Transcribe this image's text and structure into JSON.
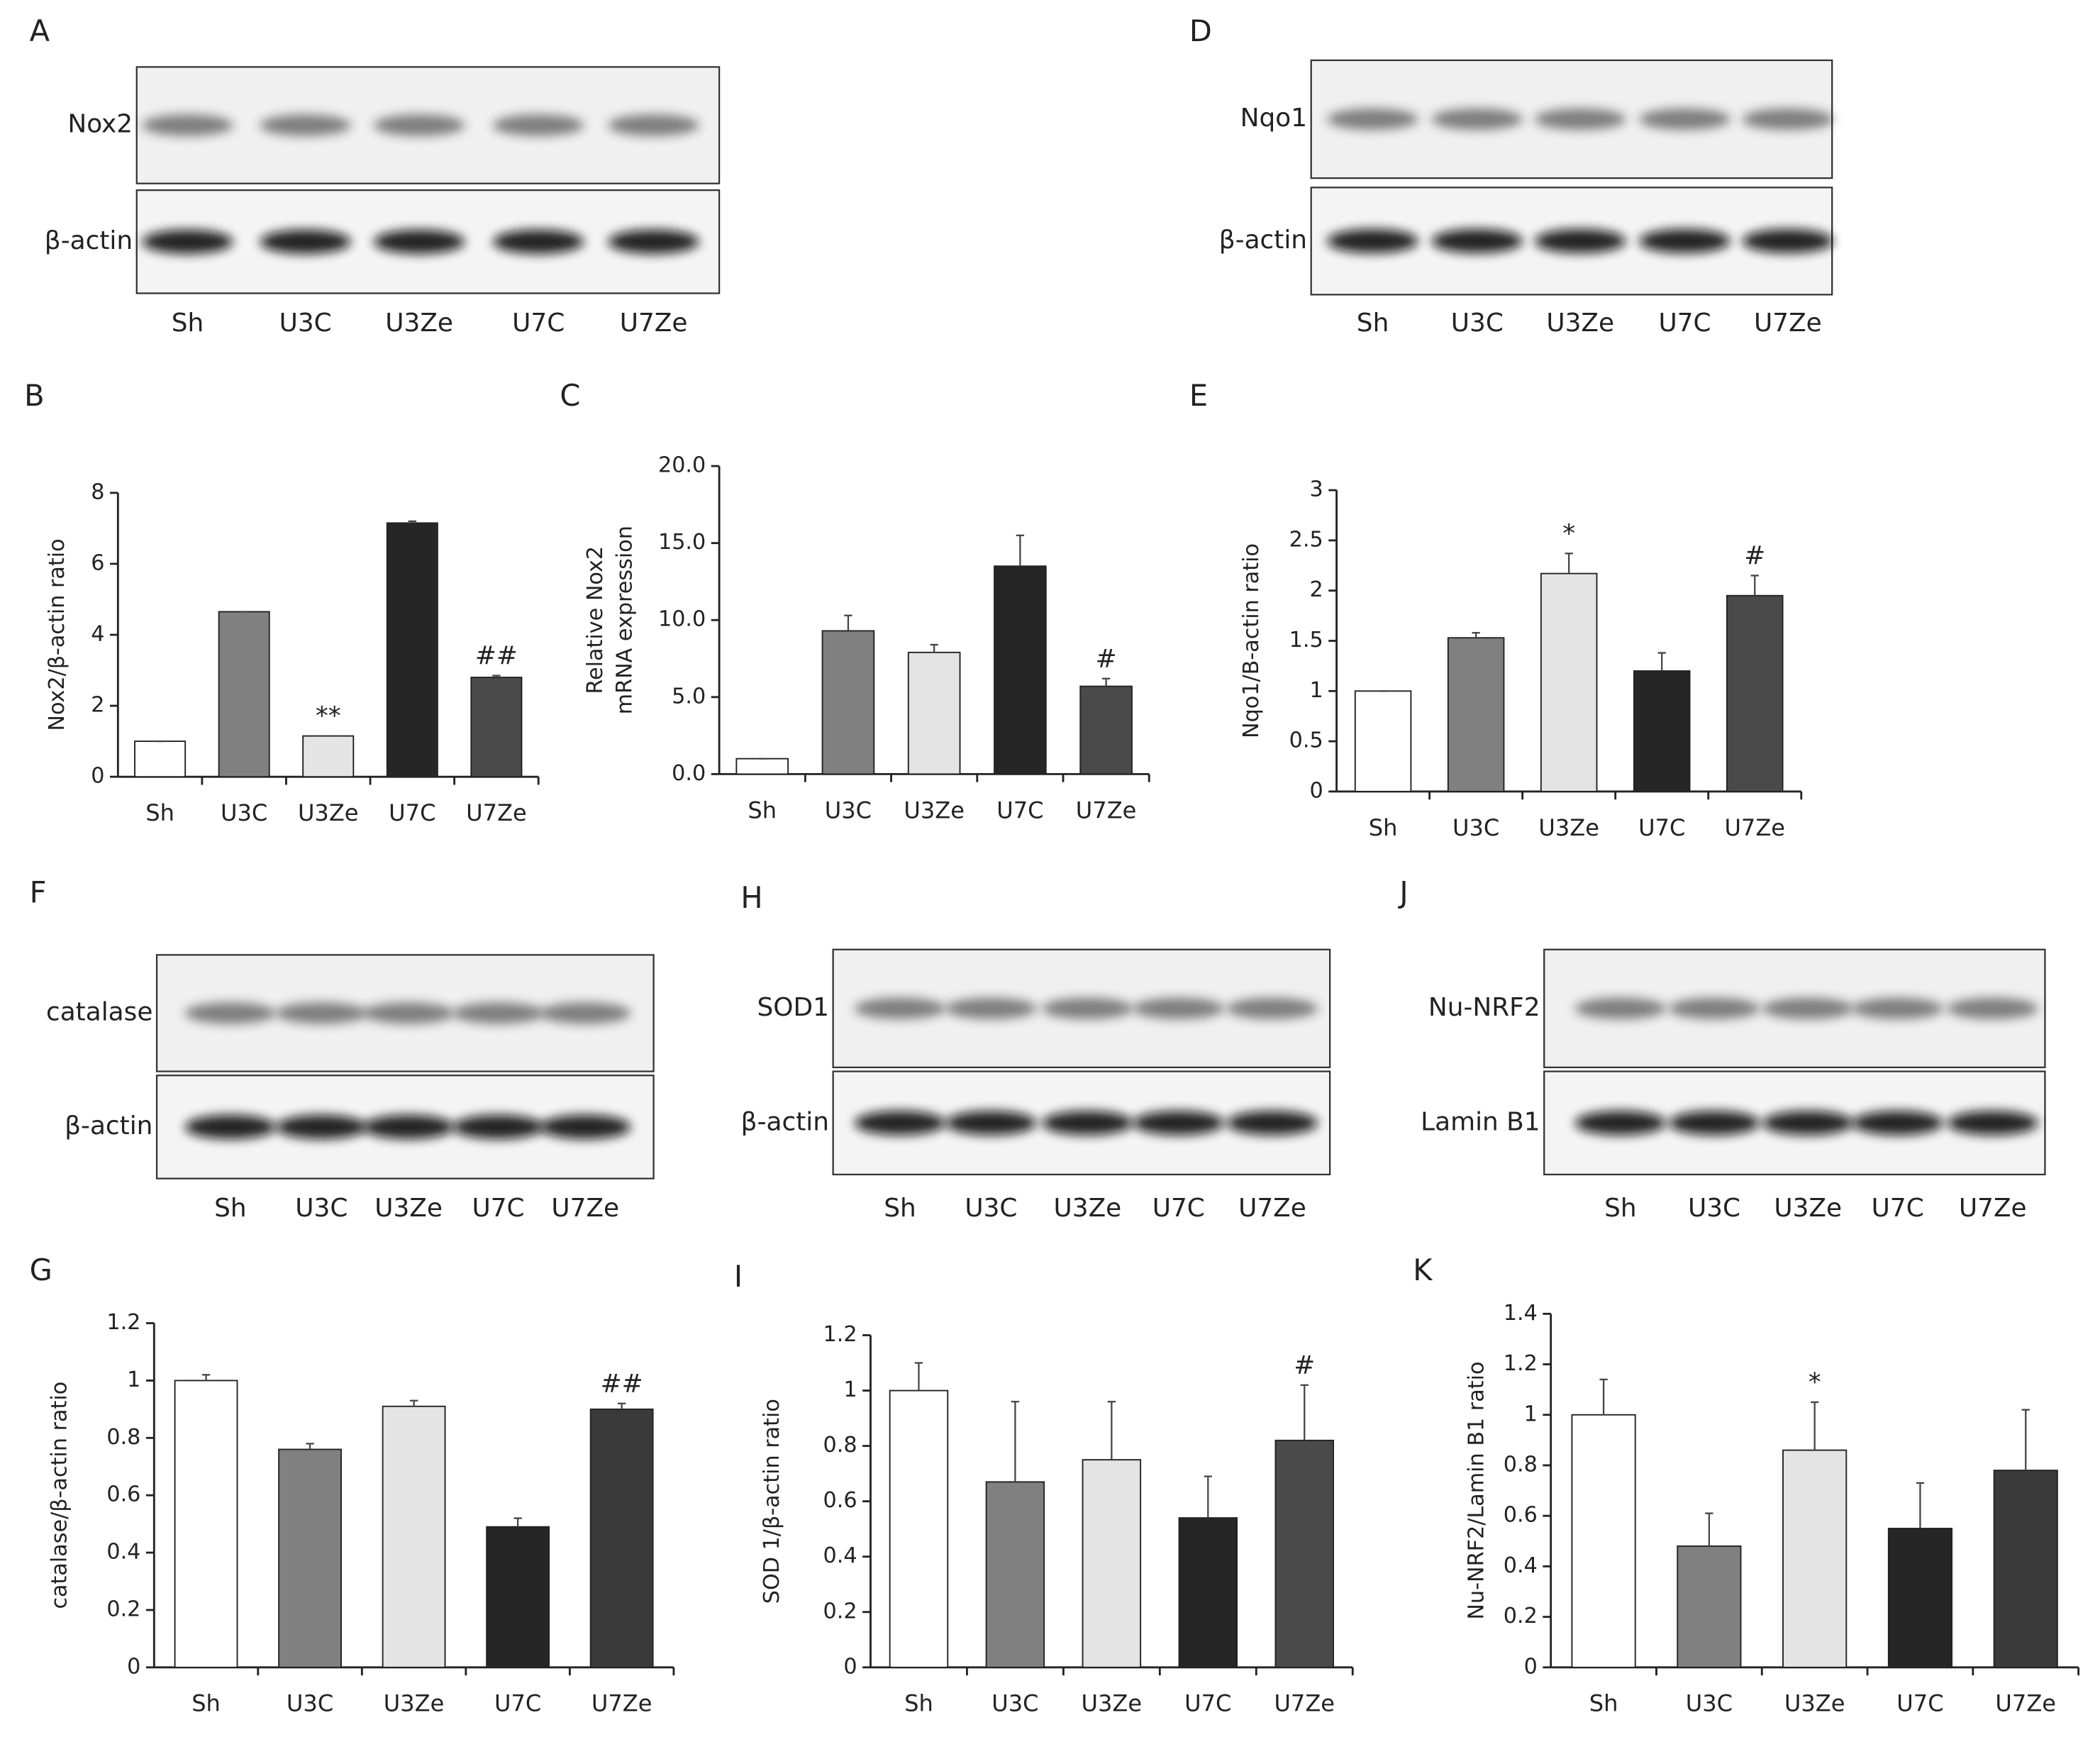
{
  "blots": [
    {
      "panel": "A",
      "rows": [
        "Nox2",
        "β-actin"
      ],
      "lanes": [
        "Sh",
        "U3C",
        "U3Ze",
        "U7C",
        "U7Ze"
      ]
    },
    {
      "panel": "D",
      "rows": [
        "Nqo1",
        "β-actin"
      ],
      "lanes": [
        "Sh",
        "U3C",
        "U3Ze",
        "U7C",
        "U7Ze"
      ]
    },
    {
      "panel": "F",
      "rows": [
        "catalase",
        "β-actin"
      ],
      "lanes": [
        "Sh",
        "U3C",
        "U3Ze",
        "U7C",
        "U7Ze"
      ]
    },
    {
      "panel": "H",
      "rows": [
        "SOD1",
        "β-actin"
      ],
      "lanes": [
        "Sh",
        "U3C",
        "U3Ze",
        "U7C",
        "U7Ze"
      ]
    },
    {
      "panel": "J",
      "rows": [
        "Nu-NRF2",
        "Lamin B1"
      ],
      "lanes": [
        "Sh",
        "U3C",
        "U3Ze",
        "U7C",
        "U7Ze"
      ]
    }
  ],
  "chart_data": [
    {
      "panel": "B",
      "type": "bar",
      "ylabel": [
        "Nox2/β-actin ratio"
      ],
      "categories": [
        "Sh",
        "U3C",
        "U3Ze",
        "U7C",
        "U7Ze"
      ],
      "values": [
        1,
        4.65,
        1.15,
        7.15,
        2.8
      ],
      "errors": [
        0,
        0,
        0,
        0.05,
        0.05
      ],
      "annotations": [
        null,
        null,
        "**",
        null,
        "##"
      ],
      "colors": [
        "#ffffff",
        "#808080",
        "#e4e4e4",
        "#262626",
        "#4a4a4a"
      ],
      "ylim": [
        0,
        8
      ],
      "yticks": [
        0,
        2,
        4,
        6,
        8
      ]
    },
    {
      "panel": "C",
      "type": "bar",
      "ylabel": [
        "Relative Nox2",
        "mRNA expression"
      ],
      "categories": [
        "Sh",
        "U3C",
        "U3Ze",
        "U7C",
        "U7Ze"
      ],
      "values": [
        1,
        9.3,
        7.9,
        13.5,
        5.7
      ],
      "errors": [
        0,
        1,
        0.5,
        2,
        0.5
      ],
      "annotations": [
        null,
        null,
        null,
        null,
        "#"
      ],
      "colors": [
        "#ffffff",
        "#808080",
        "#e4e4e4",
        "#262626",
        "#4a4a4a"
      ],
      "ylim": [
        0,
        20
      ],
      "yticks": [
        {
          "value": 0,
          "label": "0.0"
        },
        {
          "value": 5,
          "label": "5.0"
        },
        {
          "value": 10,
          "label": "10.0"
        },
        {
          "value": 15,
          "label": "15.0"
        },
        {
          "value": 20,
          "label": "20.0"
        }
      ]
    },
    {
      "panel": "E",
      "type": "bar",
      "ylabel": [
        "Nqo1/B-actin ratio"
      ],
      "categories": [
        "Sh",
        "U3C",
        "U3Ze",
        "U7C",
        "U7Ze"
      ],
      "values": [
        1,
        1.53,
        2.17,
        1.2,
        1.95
      ],
      "errors": [
        0,
        0.05,
        0.2,
        0.18,
        0.2
      ],
      "annotations": [
        null,
        null,
        "*",
        null,
        "#"
      ],
      "colors": [
        "#ffffff",
        "#808080",
        "#e4e4e4",
        "#262626",
        "#4a4a4a"
      ],
      "ylim": [
        0,
        3
      ],
      "yticks": [
        0,
        0.5,
        1,
        1.5,
        2,
        2.5,
        3
      ]
    },
    {
      "panel": "G",
      "type": "bar",
      "ylabel": [
        "catalase/β-actin ratio"
      ],
      "categories": [
        "Sh",
        "U3C",
        "U3Ze",
        "U7C",
        "U7Ze"
      ],
      "values": [
        1,
        0.76,
        0.91,
        0.49,
        0.9
      ],
      "errors": [
        0.02,
        0.02,
        0.02,
        0.03,
        0.02
      ],
      "annotations": [
        null,
        null,
        null,
        null,
        "##"
      ],
      "colors": [
        "#ffffff",
        "#808080",
        "#e4e4e4",
        "#262626",
        "#3a3a3a"
      ],
      "ylim": [
        0,
        1.2
      ],
      "yticks": [
        0,
        0.2,
        0.4,
        0.6,
        0.8,
        1,
        1.2
      ]
    },
    {
      "panel": "I",
      "type": "bar",
      "ylabel": [
        "SOD 1/β-actin ratio"
      ],
      "categories": [
        "Sh",
        "U3C",
        "U3Ze",
        "U7C",
        "U7Ze"
      ],
      "values": [
        1,
        0.67,
        0.75,
        0.54,
        0.82
      ],
      "errors": [
        0.1,
        0.29,
        0.21,
        0.15,
        0.2
      ],
      "annotations": [
        null,
        null,
        null,
        null,
        "#"
      ],
      "colors": [
        "#ffffff",
        "#808080",
        "#e4e4e4",
        "#262626",
        "#4a4a4a"
      ],
      "ylim": [
        0,
        1.2
      ],
      "yticks": [
        0,
        0.2,
        0.4,
        0.6,
        0.8,
        1,
        1.2
      ]
    },
    {
      "panel": "K",
      "type": "bar",
      "ylabel": [
        "Nu-NRF2/Lamin B1 ratio"
      ],
      "categories": [
        "Sh",
        "U3C",
        "U3Ze",
        "U7C",
        "U7Ze"
      ],
      "values": [
        1,
        0.48,
        0.86,
        0.55,
        0.78
      ],
      "errors": [
        0.14,
        0.13,
        0.19,
        0.18,
        0.24
      ],
      "annotations": [
        null,
        null,
        "*",
        null,
        null
      ],
      "colors": [
        "#ffffff",
        "#808080",
        "#e4e4e4",
        "#262626",
        "#3a3a3a"
      ],
      "ylim": [
        0,
        1.4
      ],
      "yticks": [
        0,
        0.2,
        0.4,
        0.6,
        0.8,
        1,
        1.2,
        1.4
      ]
    }
  ]
}
